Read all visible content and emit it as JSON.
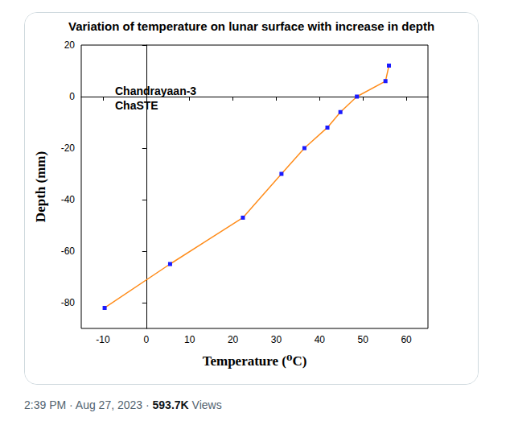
{
  "chart_data": {
    "type": "line",
    "title": "Variation of temperature on lunar surface with increase in depth",
    "x_label": "Temperature (⁰C)",
    "y_label": "Depth (mm)",
    "annotations": [
      "Chandrayaan-3",
      "ChaSTE"
    ],
    "series": [
      {
        "name": "ChaSTE",
        "color": "#ff8c1a",
        "marker": "square",
        "line_style": "solid",
        "x": [
          -9.6,
          5.5,
          22.3,
          31.2,
          36.5,
          41.8,
          44.8,
          48.6,
          55.2,
          56.0
        ],
        "values": [
          -82,
          -65,
          -47,
          -30,
          -20,
          -12,
          -6,
          0,
          6,
          12
        ]
      }
    ],
    "xlim": [
      -15,
      65
    ],
    "xticks": [
      -10,
      0,
      10,
      20,
      30,
      40,
      50,
      60
    ],
    "ylim": [
      -90,
      20
    ],
    "yticks": [
      -80,
      -60,
      -40,
      -20,
      0,
      20
    ],
    "grid": false
  },
  "footer": {
    "text": "2:39 PM · Aug 27, 2023 ·",
    "views": "593.7K",
    "views_label": "Views"
  }
}
